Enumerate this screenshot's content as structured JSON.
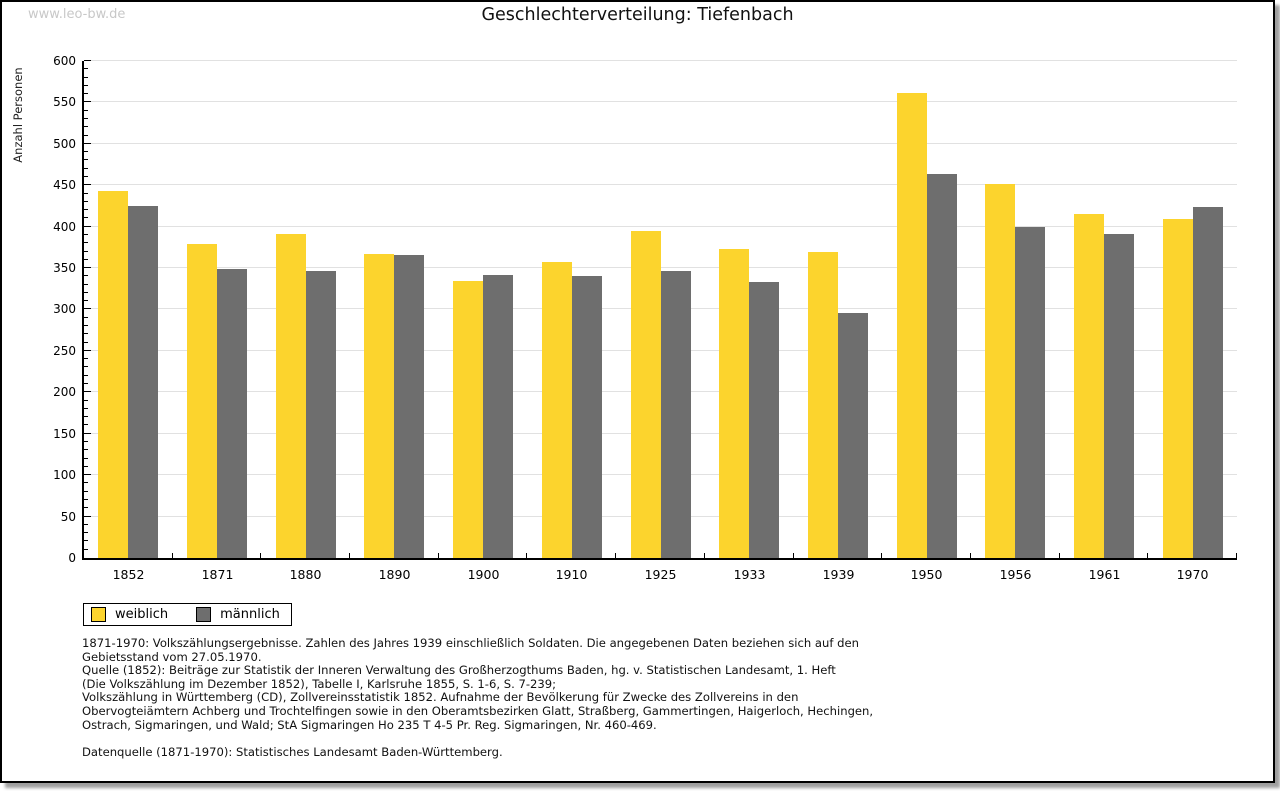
{
  "watermark": "www.leo-bw.de",
  "chart_data": {
    "type": "bar",
    "title": "Geschlechterverteilung: Tiefenbach",
    "xlabel": "",
    "ylabel": "Anzahl Personen",
    "ylim": [
      0,
      600
    ],
    "ytick_step": 50,
    "ytick_minor_step": 10,
    "grid": true,
    "legend_position": "bottom-left",
    "categories": [
      "1852",
      "1871",
      "1880",
      "1890",
      "1900",
      "1910",
      "1925",
      "1933",
      "1939",
      "1950",
      "1956",
      "1961",
      "1970"
    ],
    "series": [
      {
        "name": "weiblich",
        "color": "#FCD42D",
        "values": [
          443,
          379,
          391,
          367,
          334,
          357,
          395,
          373,
          370,
          561,
          451,
          415,
          409
        ]
      },
      {
        "name": "männlich",
        "color": "#6E6E6E",
        "values": [
          425,
          349,
          346,
          366,
          342,
          340,
          347,
          333,
          296,
          464,
          400,
          391,
          424
        ]
      }
    ]
  },
  "colors": {
    "gridline": "#e1e1e1",
    "axis": "#000000",
    "watermark": "#c8c8c8"
  },
  "footnotes": {
    "lines": [
      "1871-1970: Volkszählungsergebnisse. Zahlen des Jahres 1939 einschließlich Soldaten. Die angegebenen Daten beziehen sich auf den",
      "Gebietsstand vom 27.05.1970.",
      "Quelle (1852): Beiträge zur Statistik der Inneren Verwaltung des Großherzogthums Baden, hg. v. Statistischen Landesamt, 1. Heft",
      "(Die Volkszählung im Dezember 1852), Tabelle I, Karlsruhe 1855, S. 1-6, S. 7-239;",
      "Volkszählung in Württemberg (CD), Zollvereinsstatistik 1852. Aufnahme der Bevölkerung für Zwecke des Zollvereins in den",
      "Obervogteiämtern Achberg und Trochtelfingen sowie in den Oberamtsbezirken Glatt, Straßberg, Gammertingen, Haigerloch, Hechingen,",
      "Ostrach, Sigmaringen, und Wald; StA Sigmaringen Ho 235 T 4-5 Pr. Reg. Sigmaringen, Nr. 460-469."
    ],
    "datasource": "Datenquelle (1871-1970): Statistisches Landesamt Baden-Württemberg."
  }
}
